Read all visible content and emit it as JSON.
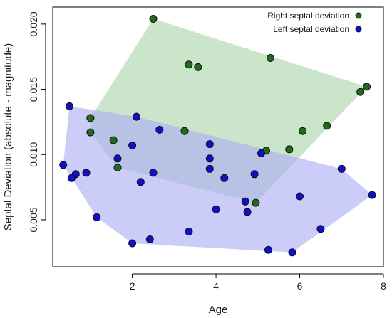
{
  "chart_data": {
    "type": "scatter",
    "xlabel": "Age",
    "ylabel": "Septal Deviation (absolute - magnitude)",
    "xlim": [
      0.1,
      8.0
    ],
    "ylim": [
      0.0014,
      0.0213
    ],
    "x_ticks": [
      2,
      4,
      6,
      8
    ],
    "y_ticks": [
      0.005,
      0.01,
      0.015,
      0.02
    ],
    "x_tick_labels": [
      "2",
      "4",
      "6",
      "8"
    ],
    "y_tick_labels": [
      "0.005",
      "0.010",
      "0.015",
      "0.020"
    ],
    "grid": false,
    "legend_position": "top-right",
    "series": [
      {
        "name": "Right septal deviation",
        "point_color": "#1e6b1e",
        "hull_color": "#a9d4a9",
        "points": [
          [
            2.5,
            0.0204
          ],
          [
            5.3,
            0.0174
          ],
          [
            3.35,
            0.0169
          ],
          [
            3.57,
            0.0167
          ],
          [
            7.6,
            0.0152
          ],
          [
            7.45,
            0.0148
          ],
          [
            1.0,
            0.0128
          ],
          [
            6.65,
            0.0122
          ],
          [
            6.07,
            0.0118
          ],
          [
            1.0,
            0.0117
          ],
          [
            3.25,
            0.0118
          ],
          [
            1.55,
            0.0111
          ],
          [
            5.75,
            0.0104
          ],
          [
            5.2,
            0.0103
          ],
          [
            1.65,
            0.009
          ],
          [
            4.95,
            0.0063
          ]
        ]
      },
      {
        "name": "Left septal deviation",
        "point_color": "#1010cc",
        "hull_color": "#aaaaf5",
        "points": [
          [
            0.5,
            0.0137
          ],
          [
            2.1,
            0.0129
          ],
          [
            2.65,
            0.0119
          ],
          [
            2.0,
            0.0107
          ],
          [
            3.85,
            0.0108
          ],
          [
            5.08,
            0.0101
          ],
          [
            1.65,
            0.0097
          ],
          [
            3.85,
            0.0097
          ],
          [
            0.35,
            0.0092
          ],
          [
            3.85,
            0.0089
          ],
          [
            7.0,
            0.0089
          ],
          [
            2.5,
            0.0086
          ],
          [
            0.9,
            0.0086
          ],
          [
            4.92,
            0.0085
          ],
          [
            0.65,
            0.0085
          ],
          [
            0.55,
            0.0082
          ],
          [
            4.2,
            0.0082
          ],
          [
            2.2,
            0.0079
          ],
          [
            6.0,
            0.0068
          ],
          [
            7.73,
            0.0069
          ],
          [
            4.7,
            0.0064
          ],
          [
            4.0,
            0.0058
          ],
          [
            4.75,
            0.0056
          ],
          [
            1.15,
            0.0052
          ],
          [
            6.5,
            0.0043
          ],
          [
            3.35,
            0.0041
          ],
          [
            2.42,
            0.0035
          ],
          [
            2.0,
            0.0032
          ],
          [
            5.25,
            0.0027
          ],
          [
            5.82,
            0.0025
          ]
        ]
      }
    ]
  }
}
